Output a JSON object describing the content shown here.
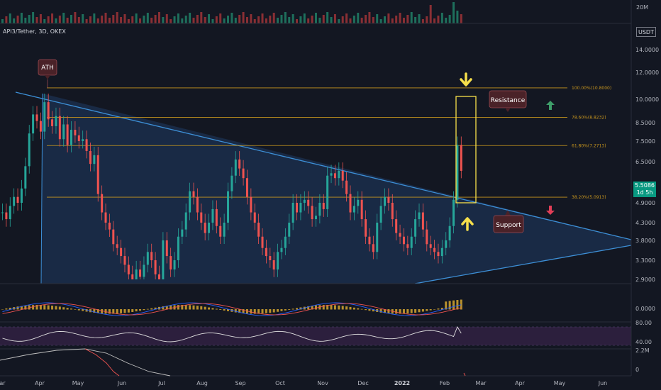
{
  "symbol": {
    "title": "API3/Tether, 3D, OKEX"
  },
  "price_axis": {
    "ticks": [
      "14.0000",
      "12.0000",
      "10.0000",
      "8.5000",
      "7.5000",
      "6.5000",
      "5.5000",
      "4.9000",
      "4.3000",
      "3.8000",
      "3.3000",
      "2.9000"
    ],
    "currency_badge": "USDT",
    "current_price": "5.5086",
    "countdown": "1d 5h"
  },
  "volume_axis": {
    "label": "20M"
  },
  "macd_axis": {
    "ticks": [
      "0.0000"
    ]
  },
  "rsi_axis": {
    "ticks": [
      "80.00",
      "40.00"
    ]
  },
  "bottom_axis": {
    "ticks": [
      "0",
      "2.2M"
    ]
  },
  "time_axis": {
    "labels": [
      {
        "text": "Mar",
        "year": false
      },
      {
        "text": "Apr",
        "year": false
      },
      {
        "text": "May",
        "year": false
      },
      {
        "text": "Jun",
        "year": false
      },
      {
        "text": "Jul",
        "year": false
      },
      {
        "text": "Aug",
        "year": false
      },
      {
        "text": "Sep",
        "year": false
      },
      {
        "text": "Oct",
        "year": false
      },
      {
        "text": "Nov",
        "year": false
      },
      {
        "text": "Dec",
        "year": false
      },
      {
        "text": "2022",
        "year": true
      },
      {
        "text": "Feb",
        "year": false
      },
      {
        "text": "Mar",
        "year": false
      },
      {
        "text": "Apr",
        "year": false
      },
      {
        "text": "May",
        "year": false
      },
      {
        "text": "Jun",
        "year": false
      }
    ]
  },
  "fibonacci": [
    {
      "label": "100.00%(10.8000)",
      "value": 10.8
    },
    {
      "label": "78.60%(8.8232)",
      "value": 8.8232
    },
    {
      "label": "61.80%(7.2713)",
      "value": 7.2713
    },
    {
      "label": "38.20%(5.0913)",
      "value": 5.0913
    }
  ],
  "annotations": {
    "ath": "ATH",
    "resistance": "Resistance",
    "support": "Support"
  },
  "colors": {
    "background": "#131722",
    "up": "#26a69a",
    "down": "#ef5350",
    "fib": "#c8961e",
    "triangle_fill": "#1f3a63",
    "triangle_line": "#3d8fd6",
    "highlight": "#f7e04b",
    "callout": "#4a2228",
    "rsi_band": "#2c1f3d",
    "macd_hist": "#b8912e",
    "up_arrow": "#3e9e6a",
    "down_arrow": "#e23e57"
  }
}
